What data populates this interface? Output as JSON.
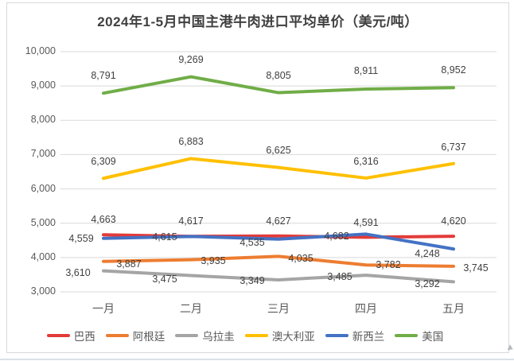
{
  "chart_data": {
    "type": "line",
    "title": "2024年1-5月中国主港牛肉进口平均单价（美元/吨）",
    "categories": [
      "一月",
      "二月",
      "三月",
      "四月",
      "五月"
    ],
    "y_axis": {
      "min": 3000,
      "max": 10000,
      "step": 1000
    },
    "grid": true,
    "legend_position": "bottom",
    "colors": {
      "grid": "#d9d9d9",
      "axis_text": "#595959",
      "label_text": "#404040",
      "title_text": "#404040"
    },
    "series": [
      {
        "id": "brazil",
        "name": "巴西",
        "color": "#e33b39",
        "values": [
          4663,
          4617,
          4627,
          4591,
          4620
        ],
        "label_offsets": [
          [
            0,
            -19
          ],
          [
            0,
            -19
          ],
          [
            0,
            -19
          ],
          [
            0,
            -18
          ],
          [
            0,
            -19
          ]
        ]
      },
      {
        "id": "argentina",
        "name": "阿根廷",
        "color": "#ed7d31",
        "values": [
          3887,
          3935,
          4035,
          3782,
          3745
        ],
        "label_offsets": [
          [
            32,
            3
          ],
          [
            28,
            1
          ],
          [
            28,
            3
          ],
          [
            28,
            0
          ],
          [
            28,
            2
          ]
        ]
      },
      {
        "id": "uruguay",
        "name": "乌拉圭",
        "color": "#a5a5a5",
        "values": [
          3610,
          3475,
          3349,
          3485,
          3292
        ],
        "label_offsets": [
          [
            -32,
            2
          ],
          [
            -33,
            4
          ],
          [
            -33,
            1
          ],
          [
            -33,
            2
          ],
          [
            -33,
            3
          ]
        ]
      },
      {
        "id": "australia",
        "name": "澳大利亚",
        "color": "#ffc000",
        "values": [
          6309,
          6883,
          6625,
          6316,
          6737
        ],
        "label_offsets": [
          [
            0,
            -21
          ],
          [
            0,
            -21
          ],
          [
            0,
            -22
          ],
          [
            0,
            -21
          ],
          [
            0,
            -21
          ]
        ]
      },
      {
        "id": "new-zealand",
        "name": "新西兰",
        "color": "#4472c4",
        "values": [
          4559,
          4615,
          4535,
          4682,
          4248
        ],
        "label_offsets": [
          [
            -28,
            0
          ],
          [
            -33,
            1
          ],
          [
            -33,
            4
          ],
          [
            -37,
            3
          ],
          [
            -33,
            6
          ]
        ]
      },
      {
        "id": "usa",
        "name": "美国",
        "color": "#70ad47",
        "values": [
          8791,
          9269,
          8805,
          8911,
          8952
        ],
        "label_offsets": [
          [
            0,
            -22
          ],
          [
            0,
            -22
          ],
          [
            0,
            -22
          ],
          [
            0,
            -23
          ],
          [
            0,
            -22
          ]
        ]
      }
    ]
  }
}
